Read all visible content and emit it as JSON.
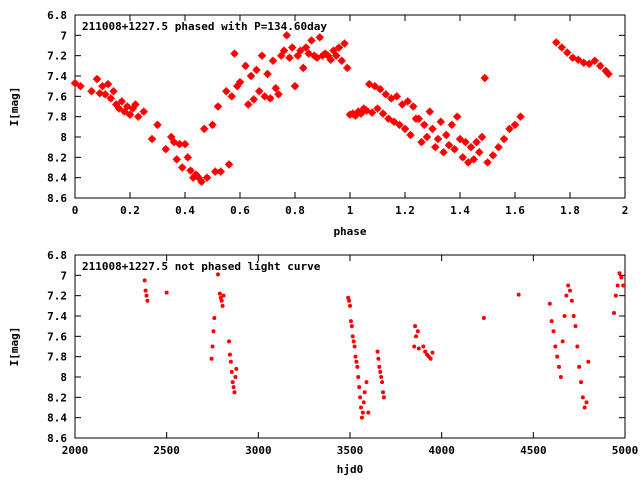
{
  "chart_data": [
    {
      "type": "scatter",
      "title": "211008+1227.5 phased with P=134.60day",
      "xlabel": "phase",
      "ylabel": "I[mag]",
      "xlim": [
        0,
        2
      ],
      "ylim": [
        8.6,
        6.8
      ],
      "y_inverted": true,
      "xticks": [
        "0",
        "0.2",
        "0.4",
        "0.6",
        "0.8",
        "1",
        "1.2",
        "1.4",
        "1.6",
        "1.8",
        "2"
      ],
      "yticks": [
        "6.8",
        "7",
        "7.2",
        "7.4",
        "7.6",
        "7.8",
        "8",
        "8.2",
        "8.4",
        "8.6"
      ],
      "marker": "filled-circle",
      "color": "#ff0000",
      "grid": false,
      "series": [
        {
          "x": [
            0.0,
            0.02,
            0.06,
            0.08,
            0.09,
            0.1,
            0.11,
            0.12,
            0.13,
            0.14,
            0.15,
            0.16,
            0.17,
            0.18,
            0.19,
            0.2,
            0.21,
            0.22,
            0.23,
            0.25,
            0.28,
            0.3,
            0.33,
            0.35,
            0.36,
            0.37,
            0.38,
            0.39,
            0.4,
            0.41,
            0.42,
            0.43,
            0.44,
            0.45,
            0.46,
            0.47,
            0.48,
            0.5,
            0.51,
            0.52,
            0.53,
            0.55,
            0.56,
            0.57,
            0.58,
            0.59,
            0.6,
            0.62,
            0.63,
            0.64,
            0.65,
            0.66,
            0.67,
            0.68,
            0.69,
            0.7,
            0.71,
            0.72,
            0.73,
            0.74,
            0.75,
            0.76,
            0.77,
            0.78,
            0.79,
            0.8,
            0.81,
            0.82,
            0.83,
            0.84,
            0.85,
            0.86,
            0.87,
            0.88,
            0.89,
            0.9,
            0.91,
            0.92,
            0.93,
            0.94,
            0.95,
            0.96,
            0.97,
            0.98,
            0.99,
            1.0,
            1.01,
            1.02,
            1.03,
            1.04,
            1.05,
            1.06,
            1.07,
            1.08,
            1.09,
            1.1,
            1.11,
            1.12,
            1.13,
            1.14,
            1.15,
            1.16,
            1.17,
            1.18,
            1.19,
            1.2,
            1.21,
            1.22,
            1.23,
            1.24,
            1.25,
            1.26,
            1.27,
            1.28,
            1.29,
            1.3,
            1.31,
            1.32,
            1.33,
            1.34,
            1.35,
            1.36,
            1.37,
            1.38,
            1.39,
            1.4,
            1.41,
            1.42,
            1.43,
            1.44,
            1.45,
            1.46,
            1.47,
            1.48,
            1.49,
            1.5,
            1.52,
            1.54,
            1.56,
            1.58,
            1.6,
            1.62,
            1.75,
            1.77,
            1.79,
            1.81,
            1.83,
            1.85,
            1.87,
            1.89,
            1.91,
            1.93,
            1.94
          ],
          "y": [
            7.47,
            7.5,
            7.55,
            7.43,
            7.57,
            7.5,
            7.58,
            7.48,
            7.62,
            7.55,
            7.68,
            7.72,
            7.65,
            7.75,
            7.7,
            7.78,
            7.72,
            7.68,
            7.8,
            7.75,
            8.02,
            7.88,
            8.12,
            8.0,
            8.05,
            8.22,
            8.07,
            8.3,
            8.07,
            8.2,
            8.33,
            8.4,
            8.37,
            8.4,
            8.44,
            7.92,
            8.4,
            7.88,
            8.34,
            7.7,
            8.34,
            7.55,
            8.27,
            7.6,
            7.18,
            7.5,
            7.46,
            7.3,
            7.68,
            7.4,
            7.63,
            7.34,
            7.55,
            7.2,
            7.6,
            7.38,
            7.62,
            7.25,
            7.52,
            7.58,
            7.2,
            7.15,
            7.0,
            7.22,
            7.12,
            7.5,
            7.2,
            7.15,
            7.32,
            7.12,
            7.18,
            7.05,
            7.2,
            7.22,
            7.02,
            7.2,
            7.18,
            7.2,
            7.24,
            7.15,
            7.2,
            7.12,
            7.25,
            7.08,
            7.32,
            7.78,
            7.77,
            7.79,
            7.75,
            7.77,
            7.72,
            7.74,
            7.48,
            7.76,
            7.5,
            7.72,
            7.53,
            7.77,
            7.58,
            7.82,
            7.62,
            7.85,
            7.6,
            7.88,
            7.68,
            7.92,
            7.65,
            7.98,
            7.7,
            7.82,
            7.82,
            8.05,
            7.88,
            8.0,
            7.75,
            7.92,
            8.1,
            8.02,
            7.85,
            8.15,
            7.98,
            8.08,
            7.88,
            8.12,
            7.8,
            8.02,
            8.2,
            8.05,
            8.25,
            8.1,
            8.22,
            8.05,
            8.15,
            8.0,
            7.42,
            8.25,
            8.18,
            8.1,
            8.02,
            7.92,
            7.88,
            7.8,
            7.07,
            7.12,
            7.17,
            7.22,
            7.24,
            7.27,
            7.28,
            7.25,
            7.3,
            7.35,
            7.38
          ]
        }
      ]
    },
    {
      "type": "scatter",
      "title": "211008+1227.5 not phased light curve",
      "xlabel": "hjd0",
      "ylabel": "I[mag]",
      "xlim": [
        2000,
        5000
      ],
      "ylim": [
        8.6,
        6.8
      ],
      "y_inverted": true,
      "xticks": [
        "2000",
        "2500",
        "3000",
        "3500",
        "4000",
        "4500",
        "5000"
      ],
      "yticks": [
        "6.8",
        "7",
        "7.2",
        "7.4",
        "7.6",
        "7.8",
        "8",
        "8.2",
        "8.4",
        "8.6"
      ],
      "marker": "small-filled-circle",
      "color": "#ff0000",
      "grid": false,
      "series": [
        {
          "x": [
            2380,
            2385,
            2390,
            2395,
            2500,
            2745,
            2750,
            2755,
            2760,
            2780,
            2790,
            2795,
            2800,
            2805,
            2810,
            2840,
            2845,
            2850,
            2855,
            2860,
            2865,
            2870,
            2875,
            2880,
            3490,
            3495,
            3500,
            3505,
            3510,
            3515,
            3520,
            3525,
            3530,
            3535,
            3540,
            3545,
            3550,
            3555,
            3560,
            3565,
            3570,
            3575,
            3580,
            3590,
            3600,
            3650,
            3655,
            3660,
            3665,
            3670,
            3675,
            3680,
            3685,
            3850,
            3855,
            3860,
            3870,
            3875,
            3900,
            3910,
            3920,
            3930,
            3940,
            3950,
            4230,
            4420,
            4590,
            4600,
            4610,
            4620,
            4630,
            4640,
            4650,
            4660,
            4670,
            4680,
            4690,
            4700,
            4710,
            4720,
            4730,
            4740,
            4750,
            4760,
            4770,
            4780,
            4790,
            4800,
            4940,
            4950,
            4960,
            4970,
            4980,
            4990
          ],
          "y": [
            7.05,
            7.15,
            7.2,
            7.25,
            7.17,
            7.82,
            7.7,
            7.55,
            7.42,
            6.99,
            7.18,
            7.22,
            7.25,
            7.3,
            7.2,
            7.65,
            7.78,
            7.85,
            7.95,
            8.05,
            8.1,
            8.15,
            8.0,
            7.92,
            7.22,
            7.25,
            7.3,
            7.45,
            7.5,
            7.6,
            7.65,
            7.7,
            7.8,
            7.85,
            7.9,
            8.0,
            8.1,
            8.2,
            8.3,
            8.4,
            8.35,
            8.25,
            8.15,
            8.05,
            8.35,
            7.75,
            7.82,
            7.9,
            7.95,
            8.0,
            8.05,
            8.15,
            8.2,
            7.7,
            7.5,
            7.6,
            7.55,
            7.72,
            7.7,
            7.75,
            7.78,
            7.8,
            7.82,
            7.76,
            7.42,
            7.19,
            7.28,
            7.45,
            7.55,
            7.7,
            7.8,
            7.9,
            8.0,
            7.65,
            7.4,
            7.2,
            7.1,
            7.15,
            7.25,
            7.4,
            7.5,
            7.7,
            7.9,
            8.05,
            8.2,
            8.3,
            8.25,
            7.85,
            7.37,
            7.2,
            7.1,
            6.98,
            7.02,
            7.1
          ]
        }
      ]
    }
  ]
}
